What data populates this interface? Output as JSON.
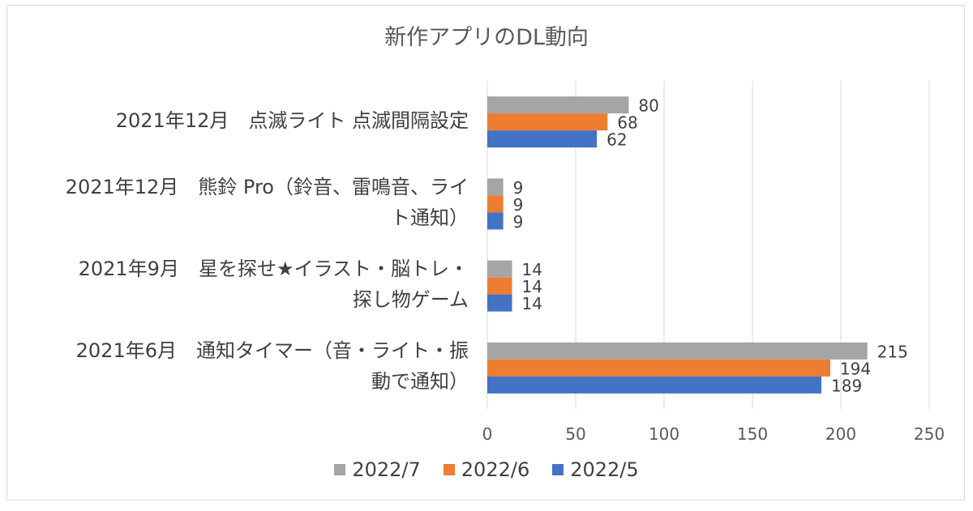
{
  "chart_data": {
    "type": "bar",
    "orientation": "horizontal",
    "title": "新作アプリのDL動向",
    "categories": [
      "2021年12月　点滅ライト 点滅間隔設定",
      "2021年12月　熊鈴 Pro（鈴音、雷鳴音、ライト通知）",
      "2021年9月　星を探せ★イラスト・脳トレ・探し物ゲーム",
      "2021年6月　通知タイマー（音・ライト・振動で通知）"
    ],
    "category_lines": [
      [
        "2021年12月　点滅ライト 点滅間隔設定"
      ],
      [
        "2021年12月　熊鈴 Pro（鈴音、雷鳴音、ライ",
        "ト通知）"
      ],
      [
        "2021年9月　星を探せ★イラスト・脳トレ・",
        "探し物ゲーム"
      ],
      [
        "2021年6月　通知タイマー（音・ライト・振",
        "動で通知）"
      ]
    ],
    "series": [
      {
        "name": "2022/7",
        "color": "#a5a5a5",
        "values": [
          80,
          9,
          14,
          215
        ]
      },
      {
        "name": "2022/6",
        "color": "#ed7d31",
        "values": [
          68,
          9,
          14,
          194
        ]
      },
      {
        "name": "2022/5",
        "color": "#4472c4",
        "values": [
          62,
          9,
          14,
          189
        ]
      }
    ],
    "xlim": [
      0,
      250
    ],
    "xticks": [
      0,
      50,
      100,
      150,
      200,
      250
    ],
    "grid": true,
    "legend_position": "bottom",
    "data_labels": true
  }
}
